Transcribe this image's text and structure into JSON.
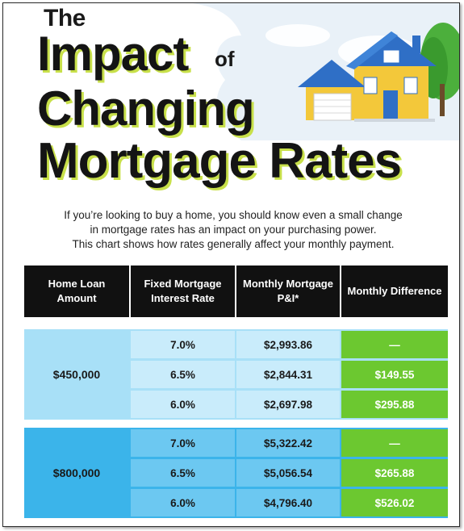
{
  "title": {
    "the": "The",
    "impact": "Impact",
    "of": "of",
    "changing": "Changing",
    "mortgage_rates": "Mortgage Rates"
  },
  "intro": [
    "If you’re looking to buy a home, you should know even a small change",
    "in mortgage rates has an impact on your purchasing power.",
    "This chart shows how rates generally affect your monthly payment."
  ],
  "table": {
    "headers": [
      "Home Loan Amount",
      "Fixed Mortgage Interest Rate",
      "Monthly Mortgage P&I*",
      "Monthly Difference"
    ],
    "groups": [
      {
        "amount": "$450,000",
        "rows": [
          {
            "rate": "7.0%",
            "pi": "$2,993.86",
            "diff": "—"
          },
          {
            "rate": "6.5%",
            "pi": "$2,844.31",
            "diff": "$149.55"
          },
          {
            "rate": "6.0%",
            "pi": "$2,697.98",
            "diff": "$295.88"
          }
        ]
      },
      {
        "amount": "$800,000",
        "rows": [
          {
            "rate": "7.0%",
            "pi": "$5,322.42",
            "diff": "—"
          },
          {
            "rate": "6.5%",
            "pi": "$5,056.54",
            "diff": "$265.88"
          },
          {
            "rate": "6.0%",
            "pi": "$4,796.40",
            "diff": "$526.02"
          }
        ]
      }
    ]
  },
  "colors": {
    "header_bg": "#111111",
    "light_blue": "#a8e0f7",
    "blue": "#3bb4ea",
    "green": "#6cc830",
    "title_shadow": "#c8e04a"
  }
}
